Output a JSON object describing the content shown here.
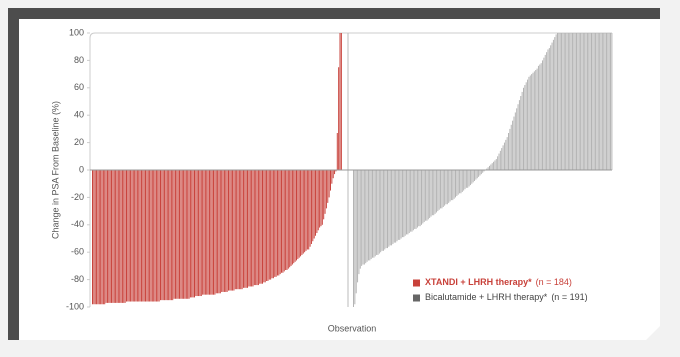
{
  "chart_data": {
    "type": "waterfall",
    "y_label": "Change in PSA From Baseline (%)",
    "x_label": "Observation",
    "ylim": [
      -100,
      100
    ],
    "yticks": [
      -100,
      -80,
      -60,
      -40,
      -20,
      0,
      20,
      40,
      60,
      80,
      100
    ],
    "series": [
      {
        "name": "XTANDI + LHRH therapy*",
        "n_label": "(n = 184)",
        "color": "#c8413a",
        "values": [
          -98,
          -98,
          -98,
          -98,
          -98,
          -98,
          -98,
          -98,
          -98,
          -98,
          -97,
          -97,
          -97,
          -97,
          -97,
          -97,
          -97,
          -97,
          -97,
          -97,
          -97,
          -97,
          -97,
          -97,
          -97,
          -96,
          -96,
          -96,
          -96,
          -96,
          -96,
          -96,
          -96,
          -96,
          -96,
          -96,
          -96,
          -96,
          -96,
          -96,
          -96,
          -96,
          -96,
          -96,
          -96,
          -96,
          -96,
          -96,
          -96,
          -96,
          -95,
          -95,
          -95,
          -95,
          -95,
          -95,
          -95,
          -95,
          -95,
          -95,
          -94,
          -94,
          -94,
          -94,
          -94,
          -94,
          -94,
          -94,
          -94,
          -94,
          -94,
          -94,
          -93,
          -93,
          -93,
          -93,
          -92,
          -92,
          -92,
          -92,
          -92,
          -91,
          -91,
          -91,
          -91,
          -91,
          -91,
          -91,
          -91,
          -91,
          -91,
          -90,
          -90,
          -90,
          -90,
          -89,
          -89,
          -89,
          -89,
          -89,
          -88,
          -88,
          -88,
          -88,
          -88,
          -87,
          -87,
          -87,
          -87,
          -87,
          -87,
          -86,
          -86,
          -86,
          -86,
          -85,
          -85,
          -85,
          -85,
          -84,
          -84,
          -84,
          -84,
          -83,
          -83,
          -83,
          -82,
          -82,
          -81,
          -81,
          -80,
          -80,
          -79,
          -79,
          -78,
          -78,
          -77,
          -77,
          -76,
          -75,
          -75,
          -74,
          -73,
          -73,
          -72,
          -71,
          -70,
          -69,
          -68,
          -67,
          -66,
          -65,
          -64,
          -63,
          -62,
          -61,
          -60,
          -59,
          -58,
          -58,
          -56,
          -54,
          -52,
          -50,
          -48,
          -46,
          -44,
          -42,
          -41,
          -40,
          -36,
          -32,
          -28,
          -24,
          -20,
          -15,
          -10,
          -6,
          -3,
          -1,
          27,
          75,
          100,
          100
        ]
      },
      {
        "name": "Bicalutamide + LHRH therapy*",
        "n_label": "(n = 191)",
        "color": "#b3b3b3",
        "values": [
          -100,
          -98,
          -90,
          -82,
          -76,
          -72,
          -70,
          -69,
          -69,
          -68,
          -67,
          -66,
          -66,
          -65,
          -64,
          -64,
          -63,
          -62,
          -62,
          -61,
          -60,
          -59,
          -59,
          -58,
          -57,
          -57,
          -56,
          -55,
          -55,
          -54,
          -53,
          -53,
          -52,
          -51,
          -51,
          -50,
          -49,
          -49,
          -48,
          -47,
          -47,
          -46,
          -45,
          -45,
          -44,
          -43,
          -43,
          -42,
          -41,
          -41,
          -40,
          -39,
          -38,
          -37,
          -37,
          -36,
          -35,
          -34,
          -33,
          -33,
          -32,
          -31,
          -30,
          -29,
          -28,
          -28,
          -27,
          -26,
          -25,
          -25,
          -24,
          -23,
          -22,
          -22,
          -21,
          -20,
          -19,
          -18,
          -17,
          -17,
          -16,
          -15,
          -14,
          -13,
          -13,
          -12,
          -11,
          -10,
          -9,
          -8,
          -7,
          -6,
          -5,
          -4,
          -3,
          -2,
          -1,
          0,
          1,
          2,
          3,
          4,
          5,
          6,
          7,
          8,
          10,
          12,
          14,
          16,
          18,
          20,
          22,
          24,
          27,
          30,
          33,
          36,
          39,
          42,
          45,
          48,
          51,
          54,
          57,
          60,
          62,
          64,
          66,
          68,
          69,
          70,
          71,
          72,
          73,
          74,
          76,
          77,
          78,
          80,
          82,
          84,
          86,
          88,
          89,
          91,
          93,
          95,
          97,
          99,
          100,
          100,
          100,
          100,
          100,
          100,
          100,
          100,
          100,
          100,
          100,
          100,
          100,
          100,
          100,
          100,
          100,
          100,
          100,
          100,
          100,
          100,
          100,
          100,
          100,
          100,
          100,
          100,
          100,
          100,
          100,
          100,
          100,
          100,
          100,
          100,
          100,
          100,
          100,
          100,
          100
        ]
      }
    ]
  }
}
